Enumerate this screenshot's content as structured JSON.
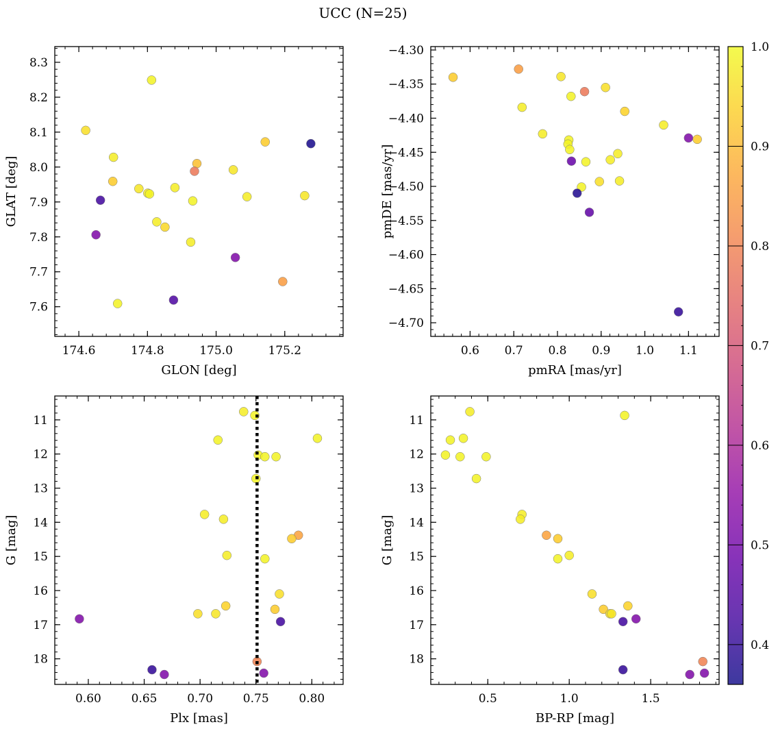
{
  "figure": {
    "title": "UCC (N=25)"
  },
  "colorbar": {
    "colormap": "plasma",
    "range": [
      0.36,
      1.0
    ],
    "ticks": [
      0.4,
      0.5,
      0.6,
      0.7,
      0.8,
      0.9,
      1.0
    ],
    "tick_labels": [
      "0.4",
      "0.5",
      "0.6",
      "0.7",
      "0.8",
      "0.9",
      "1.0"
    ]
  },
  "chart_data": [
    {
      "type": "scatter",
      "xlabel": "GLON [deg]",
      "ylabel": "GLAT [deg]",
      "xlim": [
        174.53,
        175.37
      ],
      "ylim": [
        7.515,
        8.345
      ],
      "xticks": [
        174.6,
        174.8,
        175.0,
        175.2
      ],
      "xtick_labels": [
        "174.6",
        "174.8",
        "175.0",
        "175.2"
      ],
      "yticks": [
        7.6,
        7.7,
        7.8,
        7.9,
        8.0,
        8.1,
        8.2,
        8.3
      ],
      "ytick_labels": [
        "7.6",
        "7.7",
        "7.8",
        "7.9",
        "8.0",
        "8.1",
        "8.2",
        "8.3"
      ],
      "points": [
        {
          "x": 174.812,
          "y": 8.249,
          "c": 0.99
        },
        {
          "x": 174.62,
          "y": 8.105,
          "c": 0.96
        },
        {
          "x": 175.143,
          "y": 8.072,
          "c": 0.93
        },
        {
          "x": 175.276,
          "y": 8.067,
          "c": 0.37
        },
        {
          "x": 174.701,
          "y": 8.028,
          "c": 0.98
        },
        {
          "x": 174.944,
          "y": 8.01,
          "c": 0.91
        },
        {
          "x": 175.05,
          "y": 7.992,
          "c": 0.97
        },
        {
          "x": 174.937,
          "y": 7.988,
          "c": 0.78
        },
        {
          "x": 174.699,
          "y": 7.959,
          "c": 0.93
        },
        {
          "x": 174.88,
          "y": 7.941,
          "c": 0.98
        },
        {
          "x": 174.775,
          "y": 7.938,
          "c": 0.97
        },
        {
          "x": 174.801,
          "y": 7.925,
          "c": 0.98
        },
        {
          "x": 174.806,
          "y": 7.923,
          "c": 0.99
        },
        {
          "x": 175.258,
          "y": 7.918,
          "c": 0.97
        },
        {
          "x": 175.09,
          "y": 7.915,
          "c": 0.98
        },
        {
          "x": 174.663,
          "y": 7.905,
          "c": 0.42
        },
        {
          "x": 174.932,
          "y": 7.903,
          "c": 0.99
        },
        {
          "x": 174.827,
          "y": 7.843,
          "c": 0.98
        },
        {
          "x": 174.851,
          "y": 7.828,
          "c": 0.95
        },
        {
          "x": 174.65,
          "y": 7.806,
          "c": 0.52
        },
        {
          "x": 174.926,
          "y": 7.785,
          "c": 0.98
        },
        {
          "x": 175.056,
          "y": 7.741,
          "c": 0.52
        },
        {
          "x": 175.194,
          "y": 7.672,
          "c": 0.85
        },
        {
          "x": 174.876,
          "y": 7.619,
          "c": 0.44
        },
        {
          "x": 174.713,
          "y": 7.609,
          "c": 0.99
        }
      ]
    },
    {
      "type": "scatter",
      "xlabel": "pmRA [mas/yr]",
      "ylabel": "pmDE [mas/yr]",
      "xlim": [
        0.51,
        1.17
      ],
      "ylim": [
        -4.72,
        -4.295
      ],
      "xticks": [
        0.6,
        0.7,
        0.8,
        0.9,
        1.0,
        1.1
      ],
      "xtick_labels": [
        "0.6",
        "0.7",
        "0.8",
        "0.9",
        "1.0",
        "1.1"
      ],
      "yticks": [
        -4.7,
        -4.65,
        -4.6,
        -4.55,
        -4.5,
        -4.45,
        -4.4,
        -4.35,
        -4.3
      ],
      "ytick_labels": [
        "−4.70",
        "−4.65",
        "−4.60",
        "−4.55",
        "−4.50",
        "−4.45",
        "−4.40",
        "−4.35",
        "−4.30"
      ],
      "points": [
        {
          "x": 0.711,
          "y": -4.328,
          "c": 0.85
        },
        {
          "x": 0.561,
          "y": -4.34,
          "c": 0.93
        },
        {
          "x": 0.808,
          "y": -4.339,
          "c": 0.97
        },
        {
          "x": 0.91,
          "y": -4.355,
          "c": 0.96
        },
        {
          "x": 0.862,
          "y": -4.361,
          "c": 0.78
        },
        {
          "x": 0.831,
          "y": -4.368,
          "c": 0.99
        },
        {
          "x": 0.719,
          "y": -4.384,
          "c": 0.98
        },
        {
          "x": 0.954,
          "y": -4.39,
          "c": 0.94
        },
        {
          "x": 1.043,
          "y": -4.41,
          "c": 0.98
        },
        {
          "x": 0.766,
          "y": -4.423,
          "c": 0.98
        },
        {
          "x": 1.1,
          "y": -4.429,
          "c": 0.52
        },
        {
          "x": 1.12,
          "y": -4.431,
          "c": 0.93
        },
        {
          "x": 0.826,
          "y": -4.432,
          "c": 0.99
        },
        {
          "x": 0.824,
          "y": -4.438,
          "c": 0.99
        },
        {
          "x": 0.828,
          "y": -4.446,
          "c": 0.99
        },
        {
          "x": 0.938,
          "y": -4.452,
          "c": 0.98
        },
        {
          "x": 0.921,
          "y": -4.461,
          "c": 0.98
        },
        {
          "x": 0.832,
          "y": -4.463,
          "c": 0.48
        },
        {
          "x": 0.865,
          "y": -4.464,
          "c": 0.99
        },
        {
          "x": 0.896,
          "y": -4.493,
          "c": 0.96
        },
        {
          "x": 0.942,
          "y": -4.492,
          "c": 0.98
        },
        {
          "x": 0.855,
          "y": -4.501,
          "c": 0.99
        },
        {
          "x": 0.845,
          "y": -4.51,
          "c": 0.38
        },
        {
          "x": 0.873,
          "y": -4.538,
          "c": 0.47
        },
        {
          "x": 1.077,
          "y": -4.684,
          "c": 0.4
        }
      ]
    },
    {
      "type": "scatter",
      "xlabel": "Plx [mas]",
      "ylabel": "G [mag]",
      "xlim": [
        0.57,
        0.828
      ],
      "ylim": [
        10.3,
        18.75
      ],
      "y_inverted": true,
      "xticks": [
        0.6,
        0.65,
        0.7,
        0.75,
        0.8
      ],
      "xtick_labels": [
        "0.60",
        "0.65",
        "0.70",
        "0.75",
        "0.80"
      ],
      "yticks": [
        11,
        12,
        13,
        14,
        15,
        16,
        17,
        18
      ],
      "ytick_labels": [
        "11",
        "12",
        "13",
        "14",
        "15",
        "16",
        "17",
        "18"
      ],
      "vline": {
        "x": 0.751,
        "style": "dotted"
      },
      "points": [
        {
          "x": 0.739,
          "y": 10.76,
          "c": 0.98
        },
        {
          "x": 0.749,
          "y": 10.87,
          "c": 0.99
        },
        {
          "x": 0.805,
          "y": 11.54,
          "c": 0.99
        },
        {
          "x": 0.716,
          "y": 11.59,
          "c": 0.99
        },
        {
          "x": 0.752,
          "y": 12.03,
          "c": 0.99
        },
        {
          "x": 0.758,
          "y": 12.08,
          "c": 0.99
        },
        {
          "x": 0.768,
          "y": 12.08,
          "c": 0.99
        },
        {
          "x": 0.75,
          "y": 12.72,
          "c": 0.99
        },
        {
          "x": 0.704,
          "y": 13.77,
          "c": 0.98
        },
        {
          "x": 0.721,
          "y": 13.91,
          "c": 0.98
        },
        {
          "x": 0.788,
          "y": 14.38,
          "c": 0.86
        },
        {
          "x": 0.782,
          "y": 14.48,
          "c": 0.93
        },
        {
          "x": 0.724,
          "y": 14.97,
          "c": 0.98
        },
        {
          "x": 0.758,
          "y": 15.07,
          "c": 0.99
        },
        {
          "x": 0.771,
          "y": 16.1,
          "c": 0.96
        },
        {
          "x": 0.723,
          "y": 16.45,
          "c": 0.94
        },
        {
          "x": 0.767,
          "y": 16.55,
          "c": 0.93
        },
        {
          "x": 0.698,
          "y": 16.68,
          "c": 0.96
        },
        {
          "x": 0.714,
          "y": 16.68,
          "c": 0.97
        },
        {
          "x": 0.592,
          "y": 16.83,
          "c": 0.52
        },
        {
          "x": 0.772,
          "y": 16.91,
          "c": 0.42
        },
        {
          "x": 0.751,
          "y": 18.08,
          "c": 0.8
        },
        {
          "x": 0.657,
          "y": 18.32,
          "c": 0.4
        },
        {
          "x": 0.757,
          "y": 18.42,
          "c": 0.52
        },
        {
          "x": 0.668,
          "y": 18.46,
          "c": 0.52
        }
      ]
    },
    {
      "type": "scatter",
      "xlabel": "BP-RP [mag]",
      "ylabel": "G [mag]",
      "xlim": [
        0.15,
        1.92
      ],
      "ylim": [
        10.3,
        18.75
      ],
      "y_inverted": true,
      "xticks": [
        0.5,
        1.0,
        1.5
      ],
      "xtick_labels": [
        "0.5",
        "1.0",
        "1.5"
      ],
      "yticks": [
        11,
        12,
        13,
        14,
        15,
        16,
        17,
        18
      ],
      "ytick_labels": [
        "11",
        "12",
        "13",
        "14",
        "15",
        "16",
        "17",
        "18"
      ],
      "points": [
        {
          "x": 0.39,
          "y": 10.76,
          "c": 0.98
        },
        {
          "x": 1.34,
          "y": 10.87,
          "c": 0.99
        },
        {
          "x": 0.35,
          "y": 11.54,
          "c": 0.99
        },
        {
          "x": 0.27,
          "y": 11.59,
          "c": 0.99
        },
        {
          "x": 0.24,
          "y": 12.03,
          "c": 0.99
        },
        {
          "x": 0.33,
          "y": 12.08,
          "c": 0.99
        },
        {
          "x": 0.49,
          "y": 12.08,
          "c": 0.99
        },
        {
          "x": 0.43,
          "y": 12.72,
          "c": 0.99
        },
        {
          "x": 0.71,
          "y": 13.77,
          "c": 0.98
        },
        {
          "x": 0.7,
          "y": 13.91,
          "c": 0.98
        },
        {
          "x": 0.86,
          "y": 14.38,
          "c": 0.86
        },
        {
          "x": 0.93,
          "y": 14.48,
          "c": 0.93
        },
        {
          "x": 1.0,
          "y": 14.97,
          "c": 0.98
        },
        {
          "x": 0.93,
          "y": 15.07,
          "c": 0.99
        },
        {
          "x": 1.14,
          "y": 16.1,
          "c": 0.96
        },
        {
          "x": 1.36,
          "y": 16.45,
          "c": 0.94
        },
        {
          "x": 1.21,
          "y": 16.55,
          "c": 0.93
        },
        {
          "x": 1.25,
          "y": 16.68,
          "c": 0.96
        },
        {
          "x": 1.26,
          "y": 16.68,
          "c": 0.97
        },
        {
          "x": 1.41,
          "y": 16.83,
          "c": 0.52
        },
        {
          "x": 1.33,
          "y": 16.91,
          "c": 0.42
        },
        {
          "x": 1.82,
          "y": 18.08,
          "c": 0.8
        },
        {
          "x": 1.33,
          "y": 18.32,
          "c": 0.4
        },
        {
          "x": 1.83,
          "y": 18.42,
          "c": 0.52
        },
        {
          "x": 1.74,
          "y": 18.46,
          "c": 0.52
        }
      ]
    }
  ]
}
